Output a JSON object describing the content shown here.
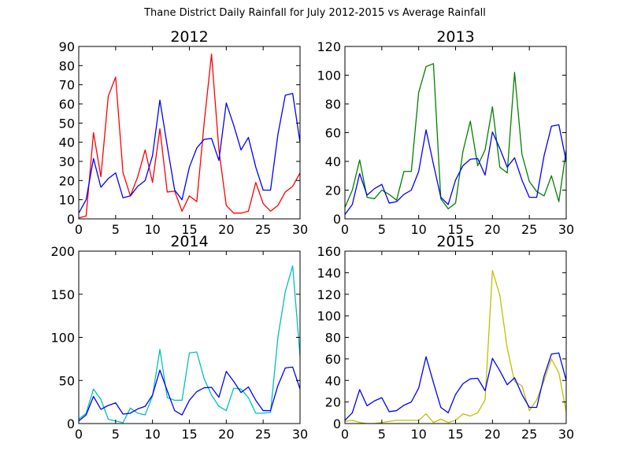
{
  "figure": {
    "title": "Thane District Daily Rainfall for July 2012-2015 vs Average Rainfall"
  },
  "chart_data": [
    {
      "type": "line",
      "title": "2012",
      "xlim": [
        0,
        30
      ],
      "ylim": [
        0,
        90
      ],
      "xticks": [
        0,
        5,
        10,
        15,
        20,
        25,
        30
      ],
      "yticks": [
        0,
        10,
        20,
        30,
        40,
        50,
        60,
        70,
        80,
        90
      ],
      "x": [
        0,
        1,
        2,
        3,
        4,
        5,
        6,
        7,
        8,
        9,
        10,
        11,
        12,
        13,
        14,
        15,
        16,
        17,
        18,
        19,
        20,
        21,
        22,
        23,
        24,
        25,
        26,
        27,
        28,
        29,
        30
      ],
      "series": [
        {
          "color": "#ff0000",
          "values": [
            0.5,
            1.5,
            45,
            22,
            64,
            74,
            24,
            12,
            22,
            36,
            19,
            47,
            14,
            14.5,
            4,
            12,
            9,
            50,
            86,
            36,
            7,
            3,
            3,
            4,
            19,
            8,
            4,
            7,
            14,
            17,
            24
          ]
        },
        {
          "color": "#0000ff",
          "values": [
            3,
            10,
            31.5,
            16.5,
            21,
            24,
            11,
            12,
            17,
            20,
            33,
            62,
            38,
            15,
            10,
            27,
            37,
            41.5,
            42,
            30.5,
            60.5,
            49,
            36,
            42.5,
            27,
            15,
            15,
            44,
            64.5,
            65.5,
            40
          ]
        }
      ]
    },
    {
      "type": "line",
      "title": "2013",
      "xlim": [
        0,
        30
      ],
      "ylim": [
        0,
        120
      ],
      "xticks": [
        0,
        5,
        10,
        15,
        20,
        25,
        30
      ],
      "yticks": [
        0,
        20,
        40,
        60,
        80,
        100,
        120
      ],
      "x": [
        0,
        1,
        2,
        3,
        4,
        5,
        6,
        7,
        8,
        9,
        10,
        11,
        12,
        13,
        14,
        15,
        16,
        17,
        18,
        19,
        20,
        21,
        22,
        23,
        24,
        25,
        26,
        27,
        28,
        29,
        30
      ],
      "series": [
        {
          "color": "#008000",
          "values": [
            8,
            20,
            41,
            15,
            14,
            20,
            17,
            13,
            33,
            33,
            88,
            106,
            108,
            14,
            7,
            11,
            47,
            68,
            37,
            48,
            78,
            36,
            32,
            102,
            45,
            26,
            19,
            16,
            30,
            12,
            48
          ]
        },
        {
          "color": "#0000ff",
          "values": [
            3,
            10,
            31.5,
            16.5,
            21,
            24,
            11,
            12,
            17,
            20,
            33,
            62,
            38,
            15,
            10,
            27,
            37,
            41.5,
            42,
            30.5,
            60.5,
            49,
            36,
            42.5,
            27,
            15,
            15,
            44,
            64.5,
            65.5,
            40
          ]
        }
      ]
    },
    {
      "type": "line",
      "title": "2014",
      "xlim": [
        0,
        30
      ],
      "ylim": [
        0,
        200
      ],
      "xticks": [
        0,
        5,
        10,
        15,
        20,
        25,
        30
      ],
      "yticks": [
        0,
        50,
        100,
        150,
        200
      ],
      "x": [
        0,
        1,
        2,
        3,
        4,
        5,
        6,
        7,
        8,
        9,
        10,
        11,
        12,
        13,
        14,
        15,
        16,
        17,
        18,
        19,
        20,
        21,
        22,
        23,
        24,
        25,
        26,
        27,
        28,
        29,
        30
      ],
      "series": [
        {
          "color": "#00bfbf",
          "values": [
            5,
            12,
            40,
            28,
            5,
            3,
            1,
            18,
            12,
            10,
            32,
            86,
            30,
            27,
            27,
            82,
            83,
            52,
            33,
            20,
            15,
            41,
            40,
            30,
            12,
            12,
            13,
            100,
            153,
            183,
            78
          ]
        },
        {
          "color": "#0000ff",
          "values": [
            3,
            10,
            31.5,
            16.5,
            21,
            24,
            11,
            12,
            17,
            20,
            33,
            62,
            38,
            15,
            10,
            27,
            37,
            41.5,
            42,
            30.5,
            60.5,
            49,
            36,
            42.5,
            27,
            15,
            15,
            44,
            64.5,
            65.5,
            40
          ]
        }
      ]
    },
    {
      "type": "line",
      "title": "2015",
      "xlim": [
        0,
        30
      ],
      "ylim": [
        0,
        160
      ],
      "xticks": [
        0,
        5,
        10,
        15,
        20,
        25,
        30
      ],
      "yticks": [
        0,
        20,
        40,
        60,
        80,
        100,
        120,
        140,
        160
      ],
      "x": [
        0,
        1,
        2,
        3,
        4,
        5,
        6,
        7,
        8,
        9,
        10,
        11,
        12,
        13,
        14,
        15,
        16,
        17,
        18,
        19,
        20,
        21,
        22,
        23,
        24,
        25,
        26,
        27,
        28,
        29,
        30
      ],
      "series": [
        {
          "color": "#bfbf00",
          "values": [
            2,
            3,
            1,
            0,
            0,
            1,
            2,
            3,
            3,
            3,
            3,
            9,
            1,
            4,
            1,
            3,
            9,
            7,
            10,
            22,
            142,
            119,
            70,
            39,
            35,
            12,
            22,
            40,
            60,
            47,
            11
          ]
        },
        {
          "color": "#0000ff",
          "values": [
            3,
            10,
            31.5,
            16.5,
            21,
            24,
            11,
            12,
            17,
            20,
            33,
            62,
            38,
            15,
            10,
            27,
            37,
            41.5,
            42,
            30.5,
            60.5,
            49,
            36,
            42.5,
            27,
            15,
            15,
            44,
            64.5,
            65.5,
            40
          ]
        }
      ]
    }
  ]
}
